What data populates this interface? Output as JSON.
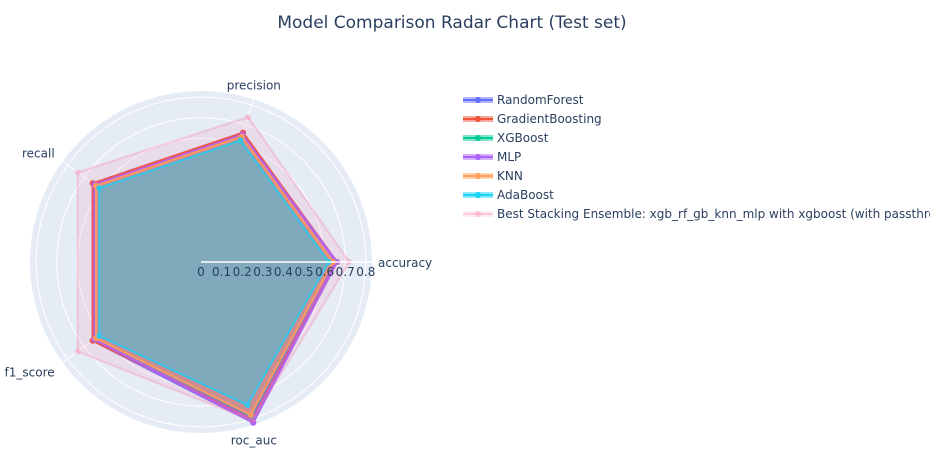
{
  "chart_data": {
    "type": "radar",
    "title": "Model Comparison Radar Chart (Test set)",
    "categories": [
      "accuracy",
      "precision",
      "recall",
      "f1_score",
      "roc_auc"
    ],
    "radial_range": [
      0,
      0.83
    ],
    "radial_ticks": [
      "0",
      "0.1",
      "0.2",
      "0.3",
      "0.4",
      "0.5",
      "0.6",
      "0.7",
      "0.8"
    ],
    "grid": true,
    "legend_position": "right",
    "series": [
      {
        "name": "RandomForest",
        "color": "#636efa",
        "values": [
          0.66,
          0.66,
          0.65,
          0.65,
          0.82
        ]
      },
      {
        "name": "GradientBoosting",
        "color": "#EF553B",
        "values": [
          0.66,
          0.66,
          0.65,
          0.65,
          0.8
        ]
      },
      {
        "name": "XGBoost",
        "color": "#00cc96",
        "values": [
          0.64,
          0.64,
          0.63,
          0.63,
          0.79
        ]
      },
      {
        "name": "MLP",
        "color": "#ab63fa",
        "values": [
          0.66,
          0.65,
          0.64,
          0.64,
          0.82
        ]
      },
      {
        "name": "KNN",
        "color": "#FFA15A",
        "values": [
          0.64,
          0.64,
          0.63,
          0.63,
          0.78
        ]
      },
      {
        "name": "AdaBoost",
        "color": "#19d3f3",
        "values": [
          0.62,
          0.62,
          0.61,
          0.61,
          0.73
        ]
      },
      {
        "name": "Best Stacking Ensemble: xgb_rf_gb_knn_mlp with xgboost (with passthrough)",
        "color": "#FF6692",
        "values": [
          0.72,
          0.74,
          0.74,
          0.74,
          0.81
        ],
        "faded": true
      }
    ]
  }
}
